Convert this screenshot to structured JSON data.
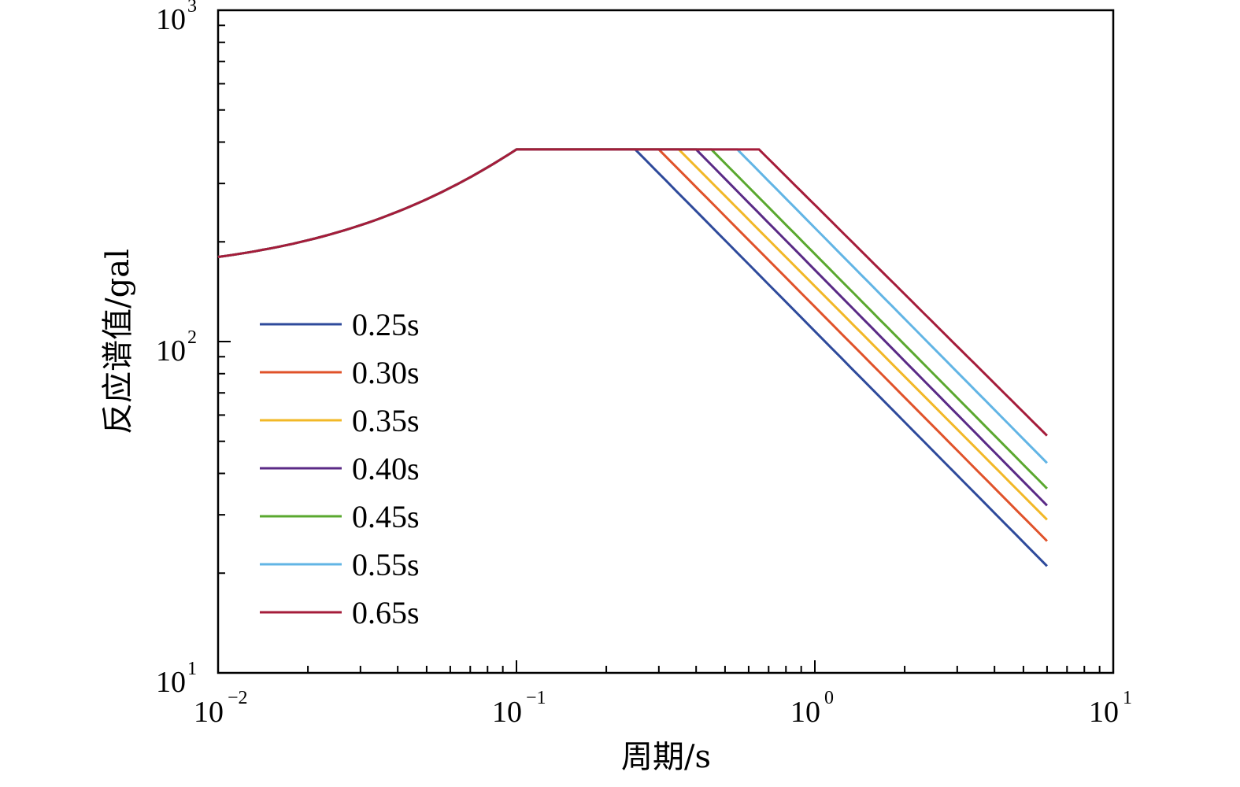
{
  "chart_data": {
    "type": "line",
    "xlabel": "周期/s",
    "ylabel": "反应谱值/gal",
    "xscale": "log",
    "yscale": "log",
    "xlim": [
      0.01,
      10
    ],
    "ylim": [
      10,
      1000
    ],
    "grid": false,
    "legend_position": "left-middle",
    "x_ticks": [
      {
        "base": "10",
        "exp": "−2"
      },
      {
        "base": "10",
        "exp": "−1"
      },
      {
        "base": "10",
        "exp": "0"
      },
      {
        "base": "10",
        "exp": "1"
      }
    ],
    "y_ticks": [
      {
        "base": "10",
        "exp": "1"
      },
      {
        "base": "10",
        "exp": "2"
      },
      {
        "base": "10",
        "exp": "3"
      }
    ],
    "common_shape": {
      "start": [
        0.01,
        180
      ],
      "plateau_start_period": 0.1,
      "plateau_value": 380,
      "end_period": 6.0
    },
    "series": [
      {
        "name": "0.25s",
        "color": "#2E4A9B",
        "corner_period": 0.25,
        "end_value": 21
      },
      {
        "name": "0.30s",
        "color": "#E0522A",
        "corner_period": 0.3,
        "end_value": 25
      },
      {
        "name": "0.35s",
        "color": "#F2B827",
        "corner_period": 0.35,
        "end_value": 29
      },
      {
        "name": "0.40s",
        "color": "#5A2A86",
        "corner_period": 0.4,
        "end_value": 32
      },
      {
        "name": "0.45s",
        "color": "#5AA82F",
        "corner_period": 0.45,
        "end_value": 36
      },
      {
        "name": "0.55s",
        "color": "#62B5E5",
        "corner_period": 0.55,
        "end_value": 43
      },
      {
        "name": "0.65s",
        "color": "#A51C3A",
        "corner_period": 0.65,
        "end_value": 52
      }
    ]
  }
}
